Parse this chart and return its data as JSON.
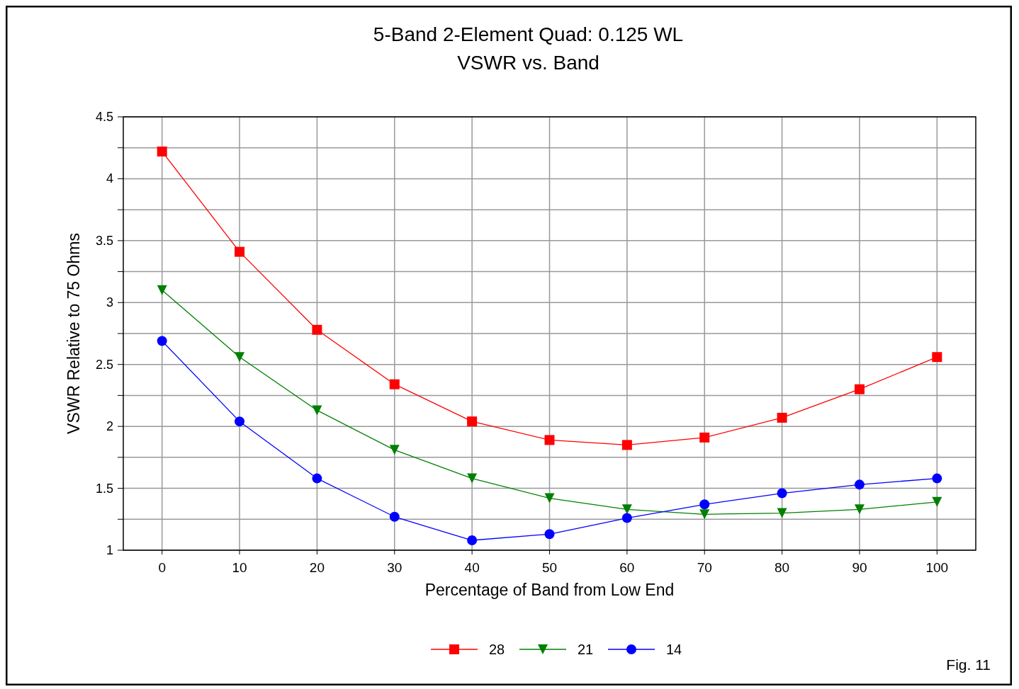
{
  "chart_data": {
    "type": "line",
    "title": "5-Band 2-Element Quad: 0.125 WL",
    "subtitle": "VSWR vs. Band",
    "xlabel": "Percentage of Band from Low End",
    "ylabel": "VSWR Relative to 75 Ohms",
    "x": [
      0,
      10,
      20,
      30,
      40,
      50,
      60,
      70,
      80,
      90,
      100
    ],
    "series": [
      {
        "name": "28",
        "color": "#ff0000",
        "marker": "square",
        "values": [
          4.22,
          3.41,
          2.78,
          2.34,
          2.04,
          1.89,
          1.85,
          1.91,
          2.07,
          2.3,
          2.56
        ]
      },
      {
        "name": "21",
        "color": "#008000",
        "marker": "triangle",
        "values": [
          3.1,
          2.56,
          2.13,
          1.81,
          1.58,
          1.42,
          1.33,
          1.29,
          1.3,
          1.33,
          1.39
        ]
      },
      {
        "name": "14",
        "color": "#0000ff",
        "marker": "circle",
        "values": [
          2.69,
          2.04,
          1.58,
          1.27,
          1.08,
          1.13,
          1.26,
          1.37,
          1.46,
          1.53,
          1.58
        ]
      }
    ],
    "xlim": [
      -5,
      105
    ],
    "xticks": [
      0,
      10,
      20,
      30,
      40,
      50,
      60,
      70,
      80,
      90,
      100
    ],
    "ylim": [
      1,
      4.5
    ],
    "yticks": [
      1,
      {
        "value": 1.25,
        "label": null
      },
      1.5,
      {
        "value": 1.75,
        "label": null
      },
      2,
      {
        "value": 2.25,
        "label": null
      },
      2.5,
      {
        "value": 2.75,
        "label": null
      },
      3,
      {
        "value": 3.25,
        "label": null
      },
      3.5,
      {
        "value": 3.75,
        "label": null
      },
      4,
      {
        "value": 4.25,
        "label": null
      },
      4.5
    ],
    "grid": true,
    "legend": "bottom",
    "line_style": "solid",
    "annotations": [
      "Fig. 11"
    ]
  }
}
